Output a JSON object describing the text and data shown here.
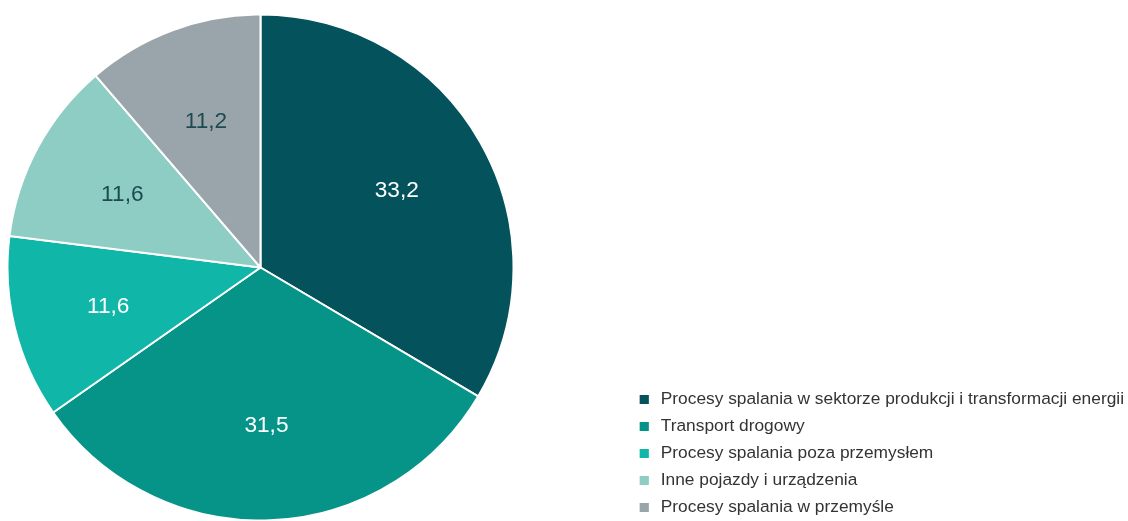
{
  "chart_data": {
    "type": "pie",
    "categories": [
      "Procesy spalania w sektorze produkcji i transformacji energii",
      "Transport drogowy",
      "Procesy spalania poza przemysłem",
      "Inne pojazdy i urządzenia",
      "Procesy spalania w przemyśle"
    ],
    "values": [
      33.2,
      31.5,
      11.6,
      11.6,
      11.2
    ],
    "value_labels": [
      "33,2",
      "31,5",
      "11,6",
      "11,6",
      "11,2"
    ],
    "colors": [
      "#03525c",
      "#069489",
      "#10b6a8",
      "#8ecdc3",
      "#9aa5ab"
    ],
    "legend": "bottom right"
  }
}
